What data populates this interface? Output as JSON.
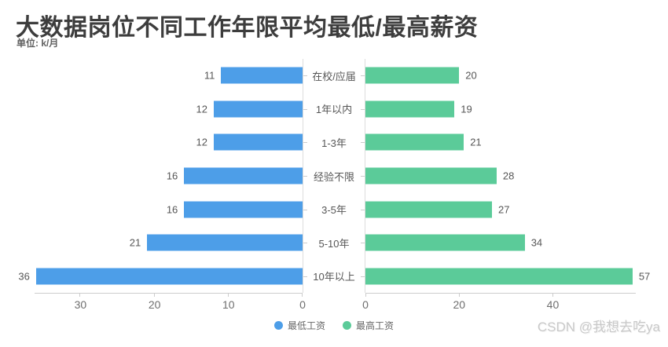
{
  "title": "大数据岗位不同工作年限平均最低/最高薪资",
  "subtitle": "单位: k/月",
  "watermark": "CSDN @我想去吃ya",
  "colors": {
    "min_salary": "#4D9EE8",
    "max_salary": "#5BCB99",
    "axis_line": "#cccccc",
    "grid_line": "#dddddd"
  },
  "chart_data": {
    "type": "bar",
    "orientation": "horizontal-diverging",
    "title": "大数据岗位不同工作年限平均最低/最高薪资",
    "unit": "k/月",
    "categories": [
      "在校/应届",
      "1年以内",
      "1-3年",
      "经验不限",
      "3-5年",
      "5-10年",
      "10年以上"
    ],
    "series": [
      {
        "name": "最低工资",
        "color": "#4D9EE8",
        "values": [
          11,
          12,
          12,
          16,
          16,
          21,
          36
        ],
        "axis": {
          "ticks": [
            30,
            20,
            10,
            0
          ],
          "max": 36.2,
          "direction": "right-to-left"
        }
      },
      {
        "name": "最高工资",
        "color": "#5BCB99",
        "values": [
          20,
          19,
          21,
          28,
          27,
          34,
          57
        ],
        "axis": {
          "ticks": [
            0,
            20,
            40
          ],
          "max": 57.7,
          "direction": "left-to-right"
        }
      }
    ],
    "data_labels": true,
    "grid": false,
    "legend_position": "bottom-center"
  }
}
